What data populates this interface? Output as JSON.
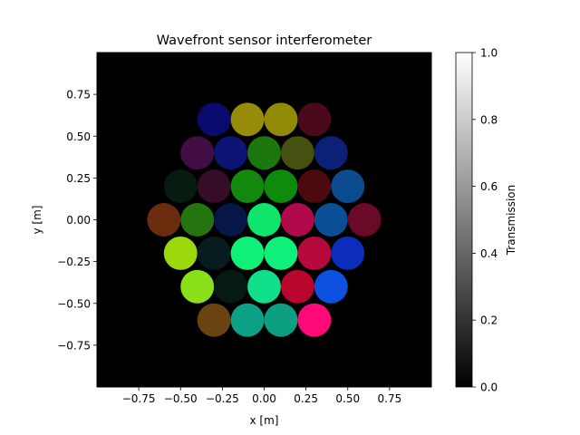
{
  "chart_data": {
    "type": "heatmap",
    "title": "Wavefront sensor interferometer",
    "xlabel": "x [m]",
    "ylabel": "y [m]",
    "xlim": [
      -1.0,
      1.0
    ],
    "ylim": [
      -1.0,
      1.0
    ],
    "xticks": [
      -0.75,
      -0.5,
      -0.25,
      0.0,
      0.25,
      0.5,
      0.75
    ],
    "yticks": [
      -0.75,
      -0.5,
      -0.25,
      0.0,
      0.25,
      0.5,
      0.75
    ],
    "xtick_labels": [
      "−0.75",
      "−0.50",
      "−0.25",
      "0.00",
      "0.25",
      "0.50",
      "0.75"
    ],
    "ytick_labels": [
      "−0.75",
      "−0.50",
      "−0.25",
      "0.00",
      "0.25",
      "0.50",
      "0.75"
    ],
    "background_color": "#000000",
    "colorbar": {
      "label": "Transmission",
      "range": [
        0.0,
        1.0
      ],
      "ticks": [
        0.0,
        0.2,
        0.4,
        0.6,
        0.8,
        1.0
      ],
      "tick_labels": [
        "0.0",
        "0.2",
        "0.4",
        "0.6",
        "0.8",
        "1.0"
      ],
      "colormap": "gray"
    },
    "subaperture_radius": 0.1,
    "subapertures": [
      {
        "x": -0.3,
        "y": 0.6,
        "color": "#0a0a6e"
      },
      {
        "x": -0.1,
        "y": 0.6,
        "color": "#968c0a"
      },
      {
        "x": 0.1,
        "y": 0.6,
        "color": "#918a06"
      },
      {
        "x": 0.3,
        "y": 0.6,
        "color": "#4b0a1c"
      },
      {
        "x": -0.4,
        "y": 0.4,
        "color": "#420c44"
      },
      {
        "x": -0.2,
        "y": 0.4,
        "color": "#0c1476"
      },
      {
        "x": 0.0,
        "y": 0.4,
        "color": "#1c780e"
      },
      {
        "x": 0.2,
        "y": 0.4,
        "color": "#465010"
      },
      {
        "x": 0.4,
        "y": 0.4,
        "color": "#0c2078"
      },
      {
        "x": -0.5,
        "y": 0.2,
        "color": "#061c10"
      },
      {
        "x": -0.3,
        "y": 0.2,
        "color": "#360c26"
      },
      {
        "x": -0.1,
        "y": 0.2,
        "color": "#14880c"
      },
      {
        "x": 0.1,
        "y": 0.2,
        "color": "#0e8a0c"
      },
      {
        "x": 0.3,
        "y": 0.2,
        "color": "#4a0a0e"
      },
      {
        "x": 0.5,
        "y": 0.2,
        "color": "#0c4c8e"
      },
      {
        "x": -0.6,
        "y": 0.0,
        "color": "#6a2c0c"
      },
      {
        "x": -0.4,
        "y": 0.0,
        "color": "#247410"
      },
      {
        "x": -0.2,
        "y": 0.0,
        "color": "#061646"
      },
      {
        "x": 0.0,
        "y": 0.0,
        "color": "#10e46a"
      },
      {
        "x": 0.2,
        "y": 0.0,
        "color": "#b00a4a"
      },
      {
        "x": 0.4,
        "y": 0.0,
        "color": "#0a4e96"
      },
      {
        "x": 0.6,
        "y": 0.0,
        "color": "#6a0a26"
      },
      {
        "x": -0.5,
        "y": -0.2,
        "color": "#9cd80c"
      },
      {
        "x": -0.3,
        "y": -0.2,
        "color": "#061c1e"
      },
      {
        "x": -0.1,
        "y": -0.2,
        "color": "#0ef076"
      },
      {
        "x": 0.1,
        "y": -0.2,
        "color": "#0ef07a"
      },
      {
        "x": 0.3,
        "y": -0.2,
        "color": "#b60a3c"
      },
      {
        "x": 0.5,
        "y": -0.2,
        "color": "#0c2cba"
      },
      {
        "x": -0.4,
        "y": -0.4,
        "color": "#8ae018"
      },
      {
        "x": -0.2,
        "y": -0.4,
        "color": "#061a12"
      },
      {
        "x": 0.0,
        "y": -0.4,
        "color": "#10e08c"
      },
      {
        "x": 0.2,
        "y": -0.4,
        "color": "#b8062c"
      },
      {
        "x": 0.4,
        "y": -0.4,
        "color": "#0c50e0"
      },
      {
        "x": -0.3,
        "y": -0.6,
        "color": "#6a4410"
      },
      {
        "x": -0.1,
        "y": -0.6,
        "color": "#0ca086"
      },
      {
        "x": 0.1,
        "y": -0.6,
        "color": "#0ca080"
      },
      {
        "x": 0.3,
        "y": -0.6,
        "color": "#ff0a78"
      }
    ]
  }
}
